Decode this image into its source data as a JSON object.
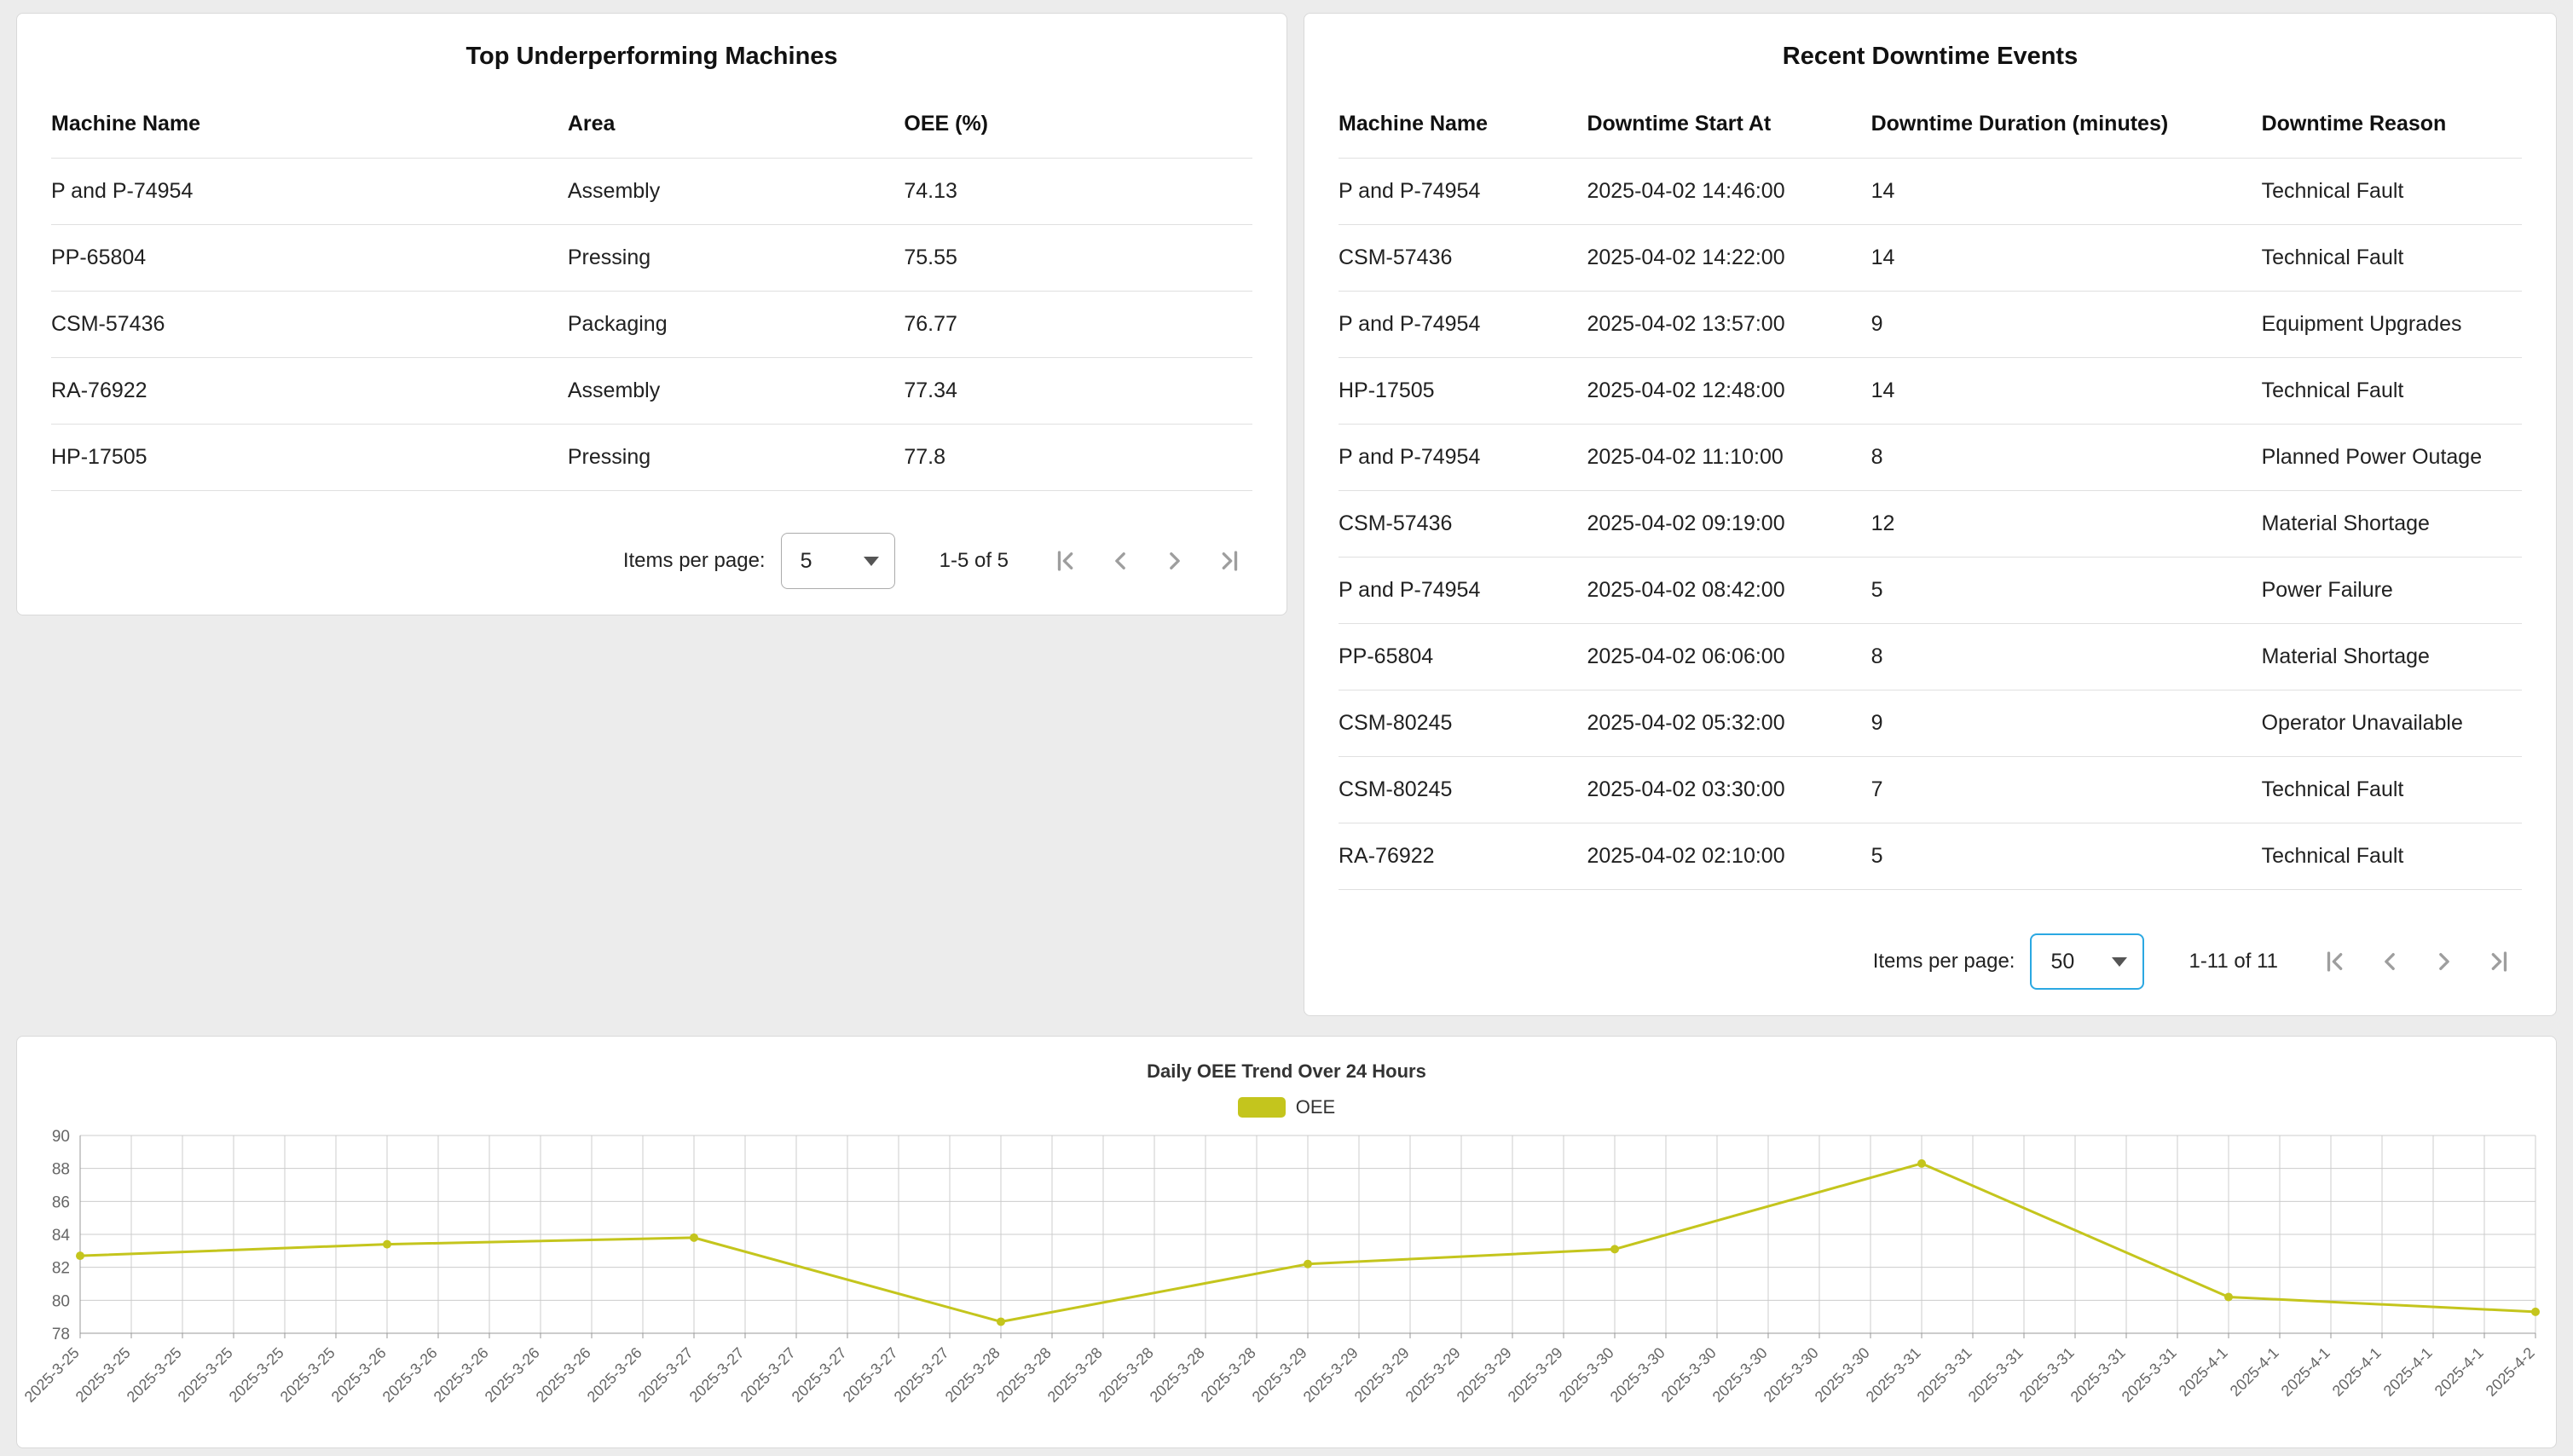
{
  "panels": {
    "underperforming": {
      "title": "Top Underperforming Machines",
      "columns": [
        "Machine Name",
        "Area",
        "OEE (%)"
      ],
      "rows": [
        [
          "P and P-74954",
          "Assembly",
          "74.13"
        ],
        [
          "PP-65804",
          "Pressing",
          "75.55"
        ],
        [
          "CSM-57436",
          "Packaging",
          "76.77"
        ],
        [
          "RA-76922",
          "Assembly",
          "77.34"
        ],
        [
          "HP-17505",
          "Pressing",
          "77.8"
        ]
      ],
      "pagination": {
        "items_per_page_label": "Items per page:",
        "items_per_page_value": "5",
        "range_label": "1-5 of 5"
      }
    },
    "downtime": {
      "title": "Recent Downtime Events",
      "columns": [
        "Machine Name",
        "Downtime Start At",
        "Downtime Duration (minutes)",
        "Downtime Reason"
      ],
      "rows": [
        [
          "P and P-74954",
          "2025-04-02 14:46:00",
          "14",
          "Technical Fault"
        ],
        [
          "CSM-57436",
          "2025-04-02 14:22:00",
          "14",
          "Technical Fault"
        ],
        [
          "P and P-74954",
          "2025-04-02 13:57:00",
          "9",
          "Equipment Upgrades"
        ],
        [
          "HP-17505",
          "2025-04-02 12:48:00",
          "14",
          "Technical Fault"
        ],
        [
          "P and P-74954",
          "2025-04-02 11:10:00",
          "8",
          "Planned Power Outage"
        ],
        [
          "CSM-57436",
          "2025-04-02 09:19:00",
          "12",
          "Material Shortage"
        ],
        [
          "P and P-74954",
          "2025-04-02 08:42:00",
          "5",
          "Power Failure"
        ],
        [
          "PP-65804",
          "2025-04-02 06:06:00",
          "8",
          "Material Shortage"
        ],
        [
          "CSM-80245",
          "2025-04-02 05:32:00",
          "9",
          "Operator Unavailable"
        ],
        [
          "CSM-80245",
          "2025-04-02 03:30:00",
          "7",
          "Technical Fault"
        ],
        [
          "RA-76922",
          "2025-04-02 02:10:00",
          "5",
          "Technical Fault"
        ]
      ],
      "pagination": {
        "items_per_page_label": "Items per page:",
        "items_per_page_value": "50",
        "range_label": "1-11 of 11"
      }
    }
  },
  "chart_data": {
    "type": "line",
    "title": "Daily OEE Trend Over 24 Hours",
    "legend": [
      "OEE"
    ],
    "legend_position": "top",
    "grid": true,
    "ylim": [
      78,
      90
    ],
    "y_ticks": [
      78,
      80,
      82,
      84,
      86,
      88,
      90
    ],
    "line_color": "#c4c51d",
    "x_points": [
      "2025-3-25",
      "2025-3-26",
      "2025-3-27",
      "2025-3-28",
      "2025-3-29",
      "2025-3-30",
      "2025-3-31",
      "2025-4-1",
      "2025-4-2"
    ],
    "series": [
      {
        "name": "OEE",
        "values": [
          82.7,
          83.4,
          83.8,
          78.7,
          82.2,
          83.1,
          88.3,
          80.2,
          79.3
        ]
      }
    ],
    "x_tick_labels": [
      "2025-3-25",
      "2025-3-25",
      "2025-3-25",
      "2025-3-25",
      "2025-3-25",
      "2025-3-25",
      "2025-3-26",
      "2025-3-26",
      "2025-3-26",
      "2025-3-26",
      "2025-3-26",
      "2025-3-26",
      "2025-3-27",
      "2025-3-27",
      "2025-3-27",
      "2025-3-27",
      "2025-3-27",
      "2025-3-27",
      "2025-3-28",
      "2025-3-28",
      "2025-3-28",
      "2025-3-28",
      "2025-3-28",
      "2025-3-28",
      "2025-3-29",
      "2025-3-29",
      "2025-3-29",
      "2025-3-29",
      "2025-3-29",
      "2025-3-29",
      "2025-3-30",
      "2025-3-30",
      "2025-3-30",
      "2025-3-30",
      "2025-3-30",
      "2025-3-30",
      "2025-3-31",
      "2025-3-31",
      "2025-3-31",
      "2025-3-31",
      "2025-3-31",
      "2025-3-31",
      "2025-4-1",
      "2025-4-1",
      "2025-4-1",
      "2025-4-1",
      "2025-4-1",
      "2025-4-1",
      "2025-4-2"
    ]
  },
  "icons": {
    "pagination": [
      "first-page-icon",
      "chevron-left-icon",
      "chevron-right-icon",
      "last-page-icon"
    ],
    "select_caret": "chevron-down-icon"
  },
  "colors": {
    "background": "#ececec",
    "panel_border": "#d9d9d9",
    "row_divider": "#e0e0e0",
    "line_color": "#c4c51d",
    "select_focus": "#2BA8E2",
    "nav_icon": "#9e9e9e"
  }
}
